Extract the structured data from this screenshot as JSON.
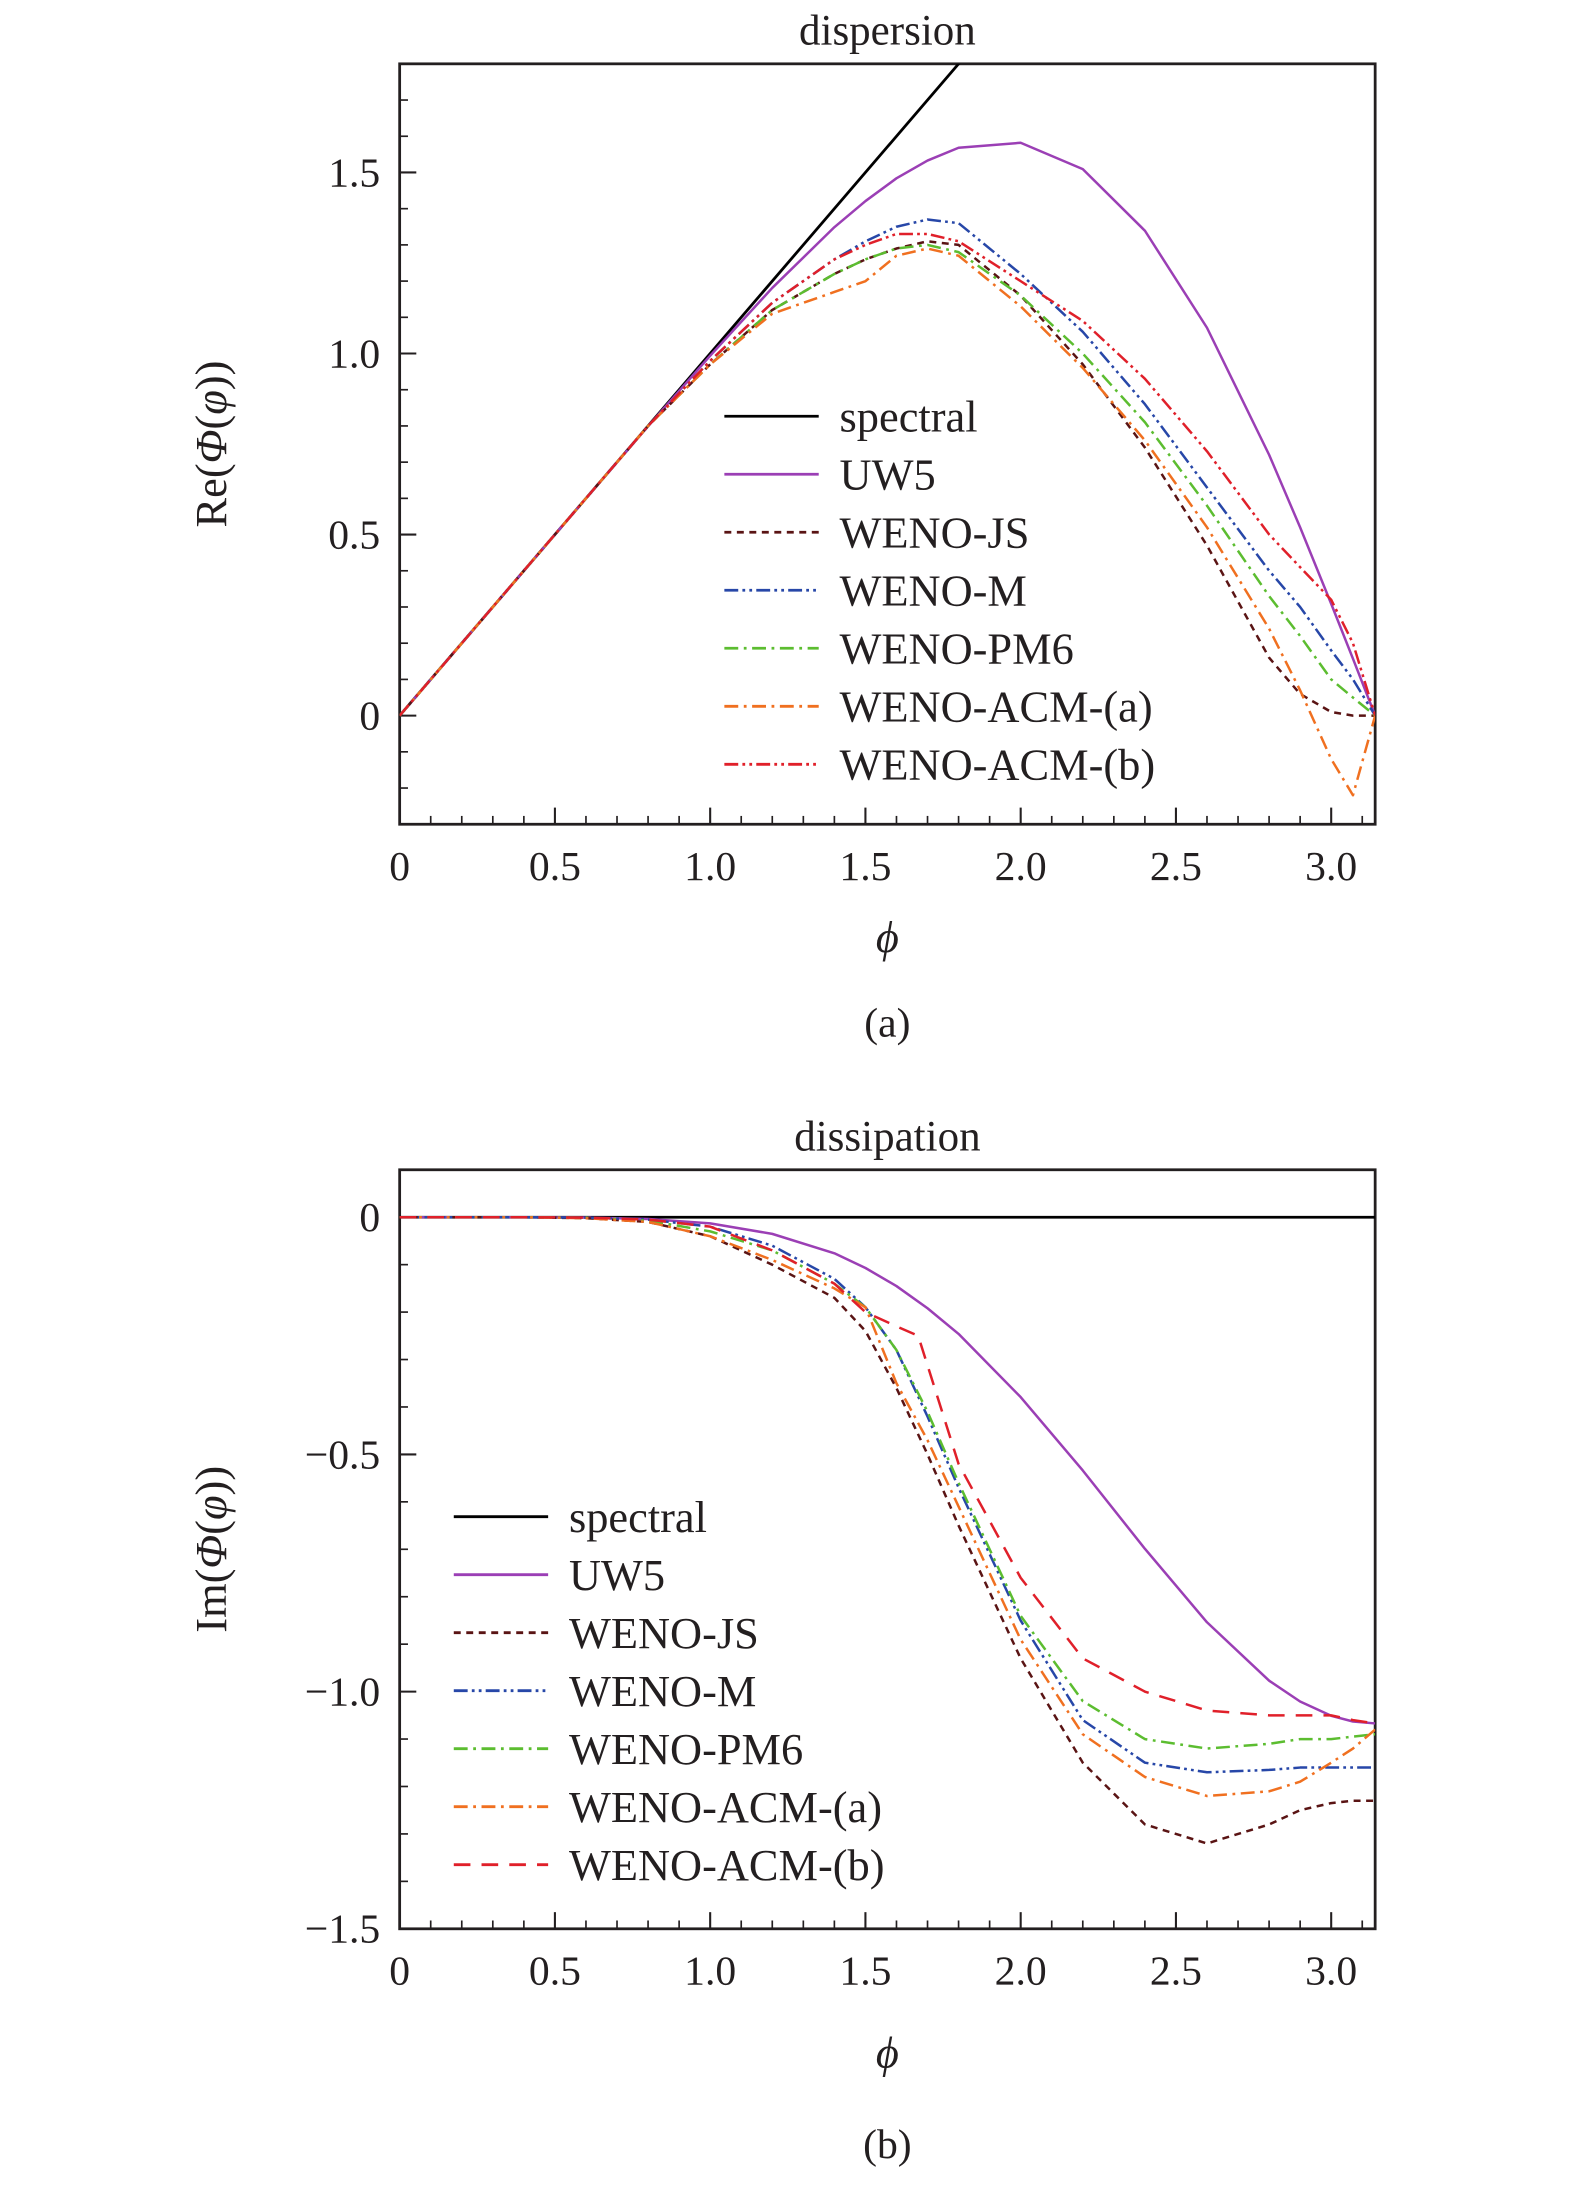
{
  "colors": {
    "spectral": "#000000",
    "UW5": "#9b3fb5",
    "WENO-JS": "#5a1414",
    "WENO-M": "#2747a8",
    "WENO-PM6": "#5cbd30",
    "WENO-ACM-(a)": "#f07020",
    "WENO-ACM-(b)": "#e0202a"
  },
  "chart_data": [
    {
      "type": "line",
      "title": "dispersion",
      "caption": "(a)",
      "xlabel": "ϕ",
      "ylabel_parts": [
        "Re(",
        "Φ",
        "(",
        "φ",
        "))"
      ],
      "xlim": [
        0,
        3.1416
      ],
      "ylim": [
        -0.3,
        1.8
      ],
      "xticks": [
        0,
        0.5,
        1.0,
        1.5,
        2.0,
        2.5,
        3.0
      ],
      "xtick_labels": [
        "0",
        "0.5",
        "1.0",
        "1.5",
        "2.0",
        "2.5",
        "3.0"
      ],
      "yticks": [
        0,
        0.5,
        1.0,
        1.5
      ],
      "ytick_labels": [
        "0",
        "0.5",
        "1.0",
        "1.5"
      ],
      "grid": false,
      "legend_position": "center-right",
      "x": [
        0,
        0.2,
        0.4,
        0.6,
        0.8,
        1.0,
        1.2,
        1.4,
        1.5,
        1.6,
        1.7,
        1.8,
        2.0,
        2.2,
        2.4,
        2.6,
        2.8,
        2.9,
        3.0,
        3.07,
        3.1416
      ],
      "series": [
        {
          "name": "spectral",
          "style": "solid",
          "x": [
            0,
            3.1416
          ],
          "values": [
            0,
            3.1416
          ]
        },
        {
          "name": "UW5",
          "style": "solid",
          "values": [
            0,
            0.2,
            0.4,
            0.6,
            0.799,
            0.994,
            1.181,
            1.349,
            1.421,
            1.484,
            1.533,
            1.568,
            1.582,
            1.509,
            1.339,
            1.071,
            0.72,
            0.52,
            0.309,
            0.157,
            0
          ]
        },
        {
          "name": "WENO-JS",
          "style": "dashed",
          "values": [
            0,
            0.2,
            0.4,
            0.6,
            0.8,
            0.97,
            1.12,
            1.22,
            1.26,
            1.29,
            1.31,
            1.3,
            1.16,
            0.97,
            0.74,
            0.47,
            0.16,
            0.06,
            0.01,
            0.0,
            0
          ]
        },
        {
          "name": "WENO-M",
          "style": "dashdotdot",
          "values": [
            0,
            0.2,
            0.4,
            0.6,
            0.8,
            0.98,
            1.14,
            1.26,
            1.31,
            1.35,
            1.37,
            1.36,
            1.22,
            1.06,
            0.86,
            0.63,
            0.4,
            0.3,
            0.18,
            0.1,
            0
          ]
        },
        {
          "name": "WENO-PM6",
          "style": "dashdot",
          "values": [
            0,
            0.2,
            0.4,
            0.6,
            0.8,
            0.97,
            1.12,
            1.22,
            1.26,
            1.29,
            1.3,
            1.28,
            1.16,
            1.0,
            0.81,
            0.58,
            0.33,
            0.22,
            0.1,
            0.05,
            0
          ]
        },
        {
          "name": "WENO-ACM-(a)",
          "style": "dashdot",
          "values": [
            0,
            0.2,
            0.4,
            0.6,
            0.8,
            0.97,
            1.11,
            1.17,
            1.2,
            1.27,
            1.29,
            1.27,
            1.13,
            0.96,
            0.76,
            0.52,
            0.24,
            0.07,
            -0.12,
            -0.22,
            0
          ]
        },
        {
          "name": "WENO-ACM-(b)",
          "style": "dashdotdot",
          "values": [
            0,
            0.2,
            0.4,
            0.6,
            0.8,
            0.98,
            1.14,
            1.26,
            1.3,
            1.33,
            1.33,
            1.31,
            1.2,
            1.09,
            0.93,
            0.73,
            0.5,
            0.41,
            0.32,
            0.2,
            0
          ]
        }
      ]
    },
    {
      "type": "line",
      "title": "dissipation",
      "caption": "(b)",
      "xlabel": "ϕ",
      "ylabel_parts": [
        "Im(",
        "Φ",
        "(",
        "φ",
        "))"
      ],
      "xlim": [
        0,
        3.1416
      ],
      "ylim": [
        -1.5,
        0.1
      ],
      "xticks": [
        0,
        0.5,
        1.0,
        1.5,
        2.0,
        2.5,
        3.0
      ],
      "xtick_labels": [
        "0",
        "0.5",
        "1.0",
        "1.5",
        "2.0",
        "2.5",
        "3.0"
      ],
      "yticks": [
        0,
        -0.5,
        -1.0,
        -1.5
      ],
      "ytick_labels": [
        "0",
        "−0.5",
        "−1.0",
        "−1.5"
      ],
      "grid": false,
      "legend_position": "center-left",
      "x": [
        0,
        0.2,
        0.4,
        0.6,
        0.8,
        1.0,
        1.2,
        1.4,
        1.5,
        1.6,
        1.7,
        1.8,
        2.0,
        2.2,
        2.4,
        2.6,
        2.8,
        2.9,
        3.0,
        3.07,
        3.1416
      ],
      "series": [
        {
          "name": "spectral",
          "style": "solid",
          "x": [
            0,
            3.1416
          ],
          "values": [
            0,
            0
          ]
        },
        {
          "name": "UW5",
          "style": "solid",
          "values": [
            0,
            0,
            -0.0001,
            -0.0007,
            -0.0037,
            -0.013,
            -0.035,
            -0.076,
            -0.107,
            -0.145,
            -0.192,
            -0.246,
            -0.379,
            -0.534,
            -0.699,
            -0.854,
            -0.977,
            -1.021,
            -1.051,
            -1.063,
            -1.067
          ]
        },
        {
          "name": "WENO-JS",
          "style": "dashed",
          "values": [
            0,
            0,
            0,
            -0.002,
            -0.01,
            -0.04,
            -0.1,
            -0.17,
            -0.24,
            -0.36,
            -0.5,
            -0.65,
            -0.93,
            -1.15,
            -1.28,
            -1.32,
            -1.28,
            -1.25,
            -1.235,
            -1.23,
            -1.23
          ]
        },
        {
          "name": "WENO-M",
          "style": "dashdotdot",
          "values": [
            0,
            0,
            0,
            -0.001,
            -0.005,
            -0.02,
            -0.06,
            -0.13,
            -0.19,
            -0.28,
            -0.42,
            -0.57,
            -0.85,
            -1.06,
            -1.15,
            -1.17,
            -1.165,
            -1.16,
            -1.16,
            -1.16,
            -1.16
          ]
        },
        {
          "name": "WENO-PM6",
          "style": "dashdot",
          "values": [
            0,
            0,
            0,
            -0.001,
            -0.007,
            -0.03,
            -0.07,
            -0.14,
            -0.19,
            -0.28,
            -0.41,
            -0.56,
            -0.84,
            -1.02,
            -1.1,
            -1.12,
            -1.11,
            -1.1,
            -1.1,
            -1.095,
            -1.09
          ]
        },
        {
          "name": "WENO-ACM-(a)",
          "style": "dashdot",
          "values": [
            0,
            0,
            0,
            -0.002,
            -0.01,
            -0.04,
            -0.09,
            -0.15,
            -0.19,
            -0.35,
            -0.47,
            -0.61,
            -0.89,
            -1.09,
            -1.18,
            -1.22,
            -1.21,
            -1.19,
            -1.15,
            -1.12,
            -1.08
          ]
        },
        {
          "name": "WENO-ACM-(b)",
          "style": "dashed-long",
          "x": [
            0,
            0.2,
            0.4,
            0.6,
            0.8,
            1.0,
            1.2,
            1.4,
            1.5,
            1.6,
            1.67,
            1.8,
            2.0,
            2.2,
            2.4,
            2.6,
            2.8,
            2.9,
            3.0,
            3.07,
            3.1416
          ],
          "values": [
            0,
            0,
            0,
            -0.001,
            -0.005,
            -0.02,
            -0.07,
            -0.14,
            -0.2,
            -0.23,
            -0.25,
            -0.52,
            -0.76,
            -0.93,
            -1.0,
            -1.04,
            -1.05,
            -1.05,
            -1.05,
            -1.06,
            -1.067
          ]
        }
      ]
    }
  ]
}
